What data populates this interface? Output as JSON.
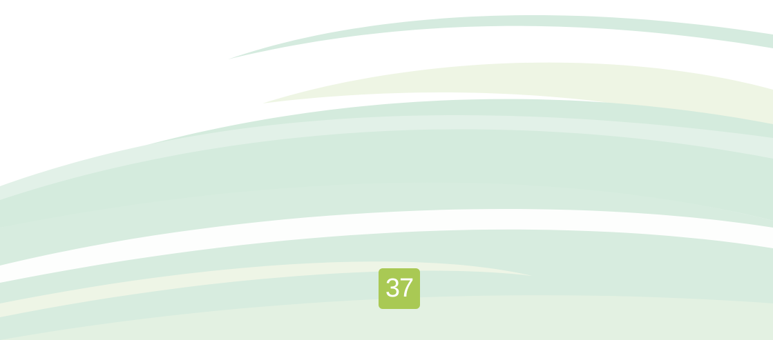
{
  "page": {
    "number": "37"
  }
}
